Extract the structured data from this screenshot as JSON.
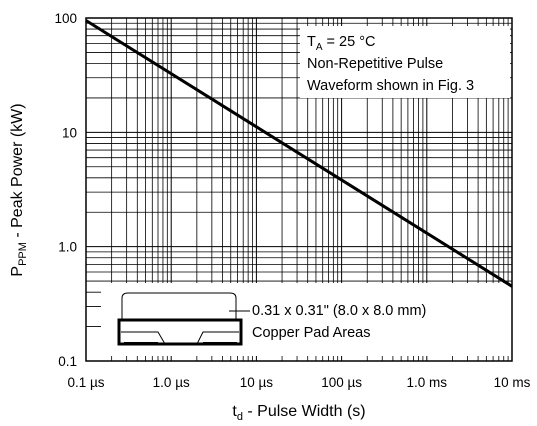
{
  "chart_data": {
    "type": "line",
    "xscale": "log",
    "yscale": "log",
    "xlim": [
      1e-07,
      0.01
    ],
    "ylim": [
      0.1,
      100
    ],
    "grid": true,
    "xticks": [
      {
        "value": 1e-07,
        "label": "0.1 µs"
      },
      {
        "value": 1e-06,
        "label": "1.0 µs"
      },
      {
        "value": 1e-05,
        "label": "10 µs"
      },
      {
        "value": 0.0001,
        "label": "100 µs"
      },
      {
        "value": 0.001,
        "label": "1.0 ms"
      },
      {
        "value": 0.01,
        "label": "10 ms"
      }
    ],
    "yticks": [
      {
        "value": 100,
        "label": "100"
      },
      {
        "value": 10,
        "label": "10"
      },
      {
        "value": 1,
        "label": "1.0"
      },
      {
        "value": 0.1,
        "label": "0.1"
      }
    ],
    "xlabel": {
      "main": "t",
      "sub": "d",
      "rest": " - Pulse Width (s)"
    },
    "ylabel": {
      "main": "P",
      "sub": "PPM",
      "rest": " - Peak Power (kW)"
    },
    "series": [
      {
        "x": [
          1e-07,
          0.01
        ],
        "y": [
          95,
          0.45
        ]
      }
    ],
    "annotations": {
      "conditions": {
        "line1_main": "T",
        "line1_sub": "A",
        "line1_rest": " = 25 °C",
        "line2": "Non-Repetitive Pulse",
        "line3": "Waveform shown in Fig. 3"
      },
      "pad": {
        "line1": "0.31 x 0.31\" (8.0 x 8.0 mm)",
        "line2": "Copper Pad Areas"
      }
    }
  }
}
